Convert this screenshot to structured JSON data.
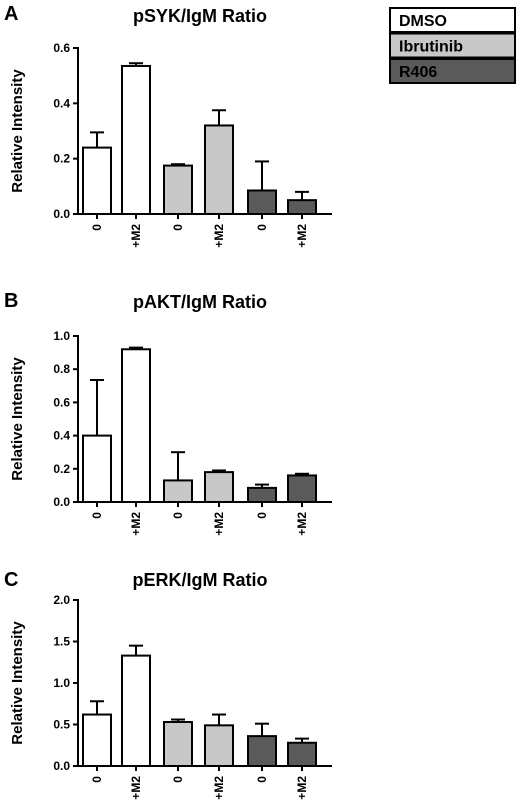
{
  "legend": [
    {
      "label": "DMSO",
      "color": "#ffffff"
    },
    {
      "label": "Ibrutinib",
      "color": "#c8c8c8"
    },
    {
      "label": "R406",
      "color": "#5a5a5a"
    }
  ],
  "chart_data": [
    {
      "type": "bar",
      "panel": "A",
      "title": "pSYK/IgM Ratio",
      "ylabel": "Relative Intensity",
      "xlabel": "",
      "ylim": [
        0,
        0.6
      ],
      "yticks": [
        0.0,
        0.2,
        0.4,
        0.6
      ],
      "ytick_labels": [
        "0.0",
        "0.2",
        "0.4",
        "0.6"
      ],
      "categories": [
        "0",
        "+M2",
        "0",
        "+M2",
        "0",
        "+M2"
      ],
      "groups": [
        "DMSO",
        "DMSO",
        "Ibrutinib",
        "Ibrutinib",
        "R406",
        "R406"
      ],
      "values": [
        0.24,
        0.535,
        0.175,
        0.32,
        0.085,
        0.05
      ],
      "errors": [
        0.055,
        0.01,
        0.005,
        0.055,
        0.105,
        0.03
      ]
    },
    {
      "type": "bar",
      "panel": "B",
      "title": "pAKT/IgM Ratio",
      "ylabel": "Relative Intensity",
      "xlabel": "",
      "ylim": [
        0,
        1.0
      ],
      "yticks": [
        0.0,
        0.2,
        0.4,
        0.6,
        0.8,
        1.0
      ],
      "ytick_labels": [
        "0.0",
        "0.2",
        "0.4",
        "0.6",
        "0.8",
        "1.0"
      ],
      "categories": [
        "0",
        "+M2",
        "0",
        "+M2",
        "0",
        "+M2"
      ],
      "groups": [
        "DMSO",
        "DMSO",
        "Ibrutinib",
        "Ibrutinib",
        "R406",
        "R406"
      ],
      "values": [
        0.4,
        0.92,
        0.13,
        0.18,
        0.085,
        0.16
      ],
      "errors": [
        0.335,
        0.01,
        0.17,
        0.01,
        0.02,
        0.01
      ]
    },
    {
      "type": "bar",
      "panel": "C",
      "title": "pERK/IgM Ratio",
      "ylabel": "Relative Intensity",
      "xlabel": "",
      "ylim": [
        0,
        2.0
      ],
      "yticks": [
        0.0,
        0.5,
        1.0,
        1.5,
        2.0
      ],
      "ytick_labels": [
        "0.0",
        "0.5",
        "1.0",
        "1.5",
        "2.0"
      ],
      "categories": [
        "0",
        "+M2",
        "0",
        "+M2",
        "0",
        "+M2"
      ],
      "groups": [
        "DMSO",
        "DMSO",
        "Ibrutinib",
        "Ibrutinib",
        "R406",
        "R406"
      ],
      "values": [
        0.62,
        1.33,
        0.53,
        0.49,
        0.36,
        0.28
      ],
      "errors": [
        0.16,
        0.12,
        0.03,
        0.13,
        0.15,
        0.05
      ]
    }
  ]
}
